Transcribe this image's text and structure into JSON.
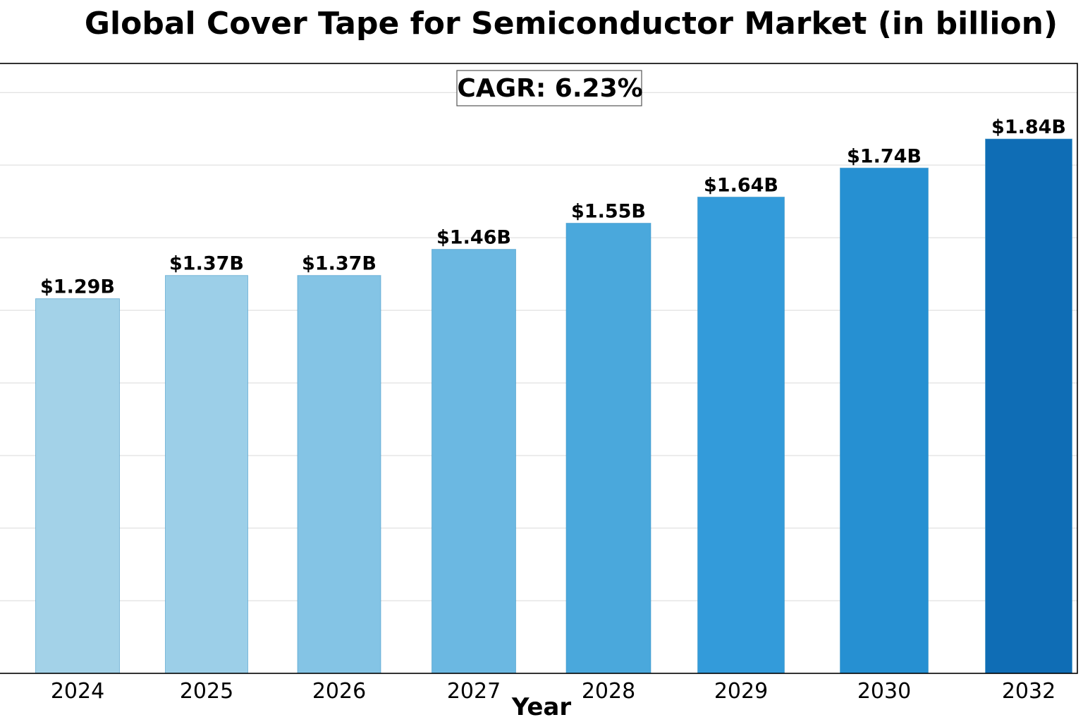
{
  "chart_data": {
    "type": "bar",
    "title": "Global Cover Tape for Semiconductor Market (in billion)",
    "annotation": "CAGR: 6.23%",
    "xlabel": "Year",
    "ylabel": "",
    "categories": [
      "2024",
      "2025",
      "2026",
      "2027",
      "2028",
      "2029",
      "2030",
      "2032"
    ],
    "values": [
      1.29,
      1.37,
      1.37,
      1.46,
      1.55,
      1.64,
      1.74,
      1.84
    ],
    "value_labels": [
      "$1.29B",
      "$1.37B",
      "$1.37B",
      "$1.46B",
      "$1.55B",
      "$1.64B",
      "$1.74B",
      "$1.84B"
    ],
    "ylim": [
      0,
      2.1
    ],
    "grid": true,
    "bar_colors": [
      "#a3d2e8",
      "#9ccfe8",
      "#84c4e5",
      "#6bb8e2",
      "#4aa8dc",
      "#339bda",
      "#2690d2",
      "#0f6db5"
    ]
  }
}
